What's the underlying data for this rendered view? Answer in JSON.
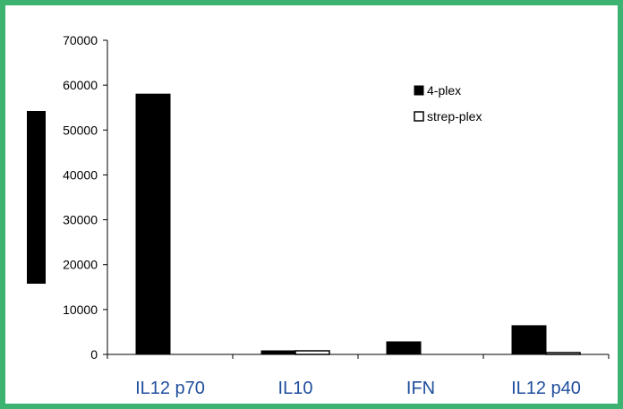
{
  "chart_data": {
    "type": "bar",
    "title": "",
    "xlabel": "",
    "ylabel": "",
    "categories": [
      "IL12 p70",
      "IL10",
      "IFN",
      "IL12 p40"
    ],
    "series": [
      {
        "name": "4-plex",
        "values": [
          58000,
          800,
          2800,
          6400
        ],
        "color": "#000000",
        "fill": "#000000"
      },
      {
        "name": "strep-plex",
        "values": [
          0,
          800,
          0,
          400
        ],
        "color": "#000000",
        "fill": "#ffffff"
      }
    ],
    "ylim": [
      0,
      70000
    ],
    "yticks": [
      "0",
      "10000",
      "20000",
      "30000",
      "40000",
      "50000",
      "60000",
      "70000"
    ],
    "grid": false,
    "legend": "top-right"
  },
  "colors": {
    "frame_border": "#3cb371",
    "category_label": "#1f4e9c",
    "bar_dark": "#000000"
  }
}
